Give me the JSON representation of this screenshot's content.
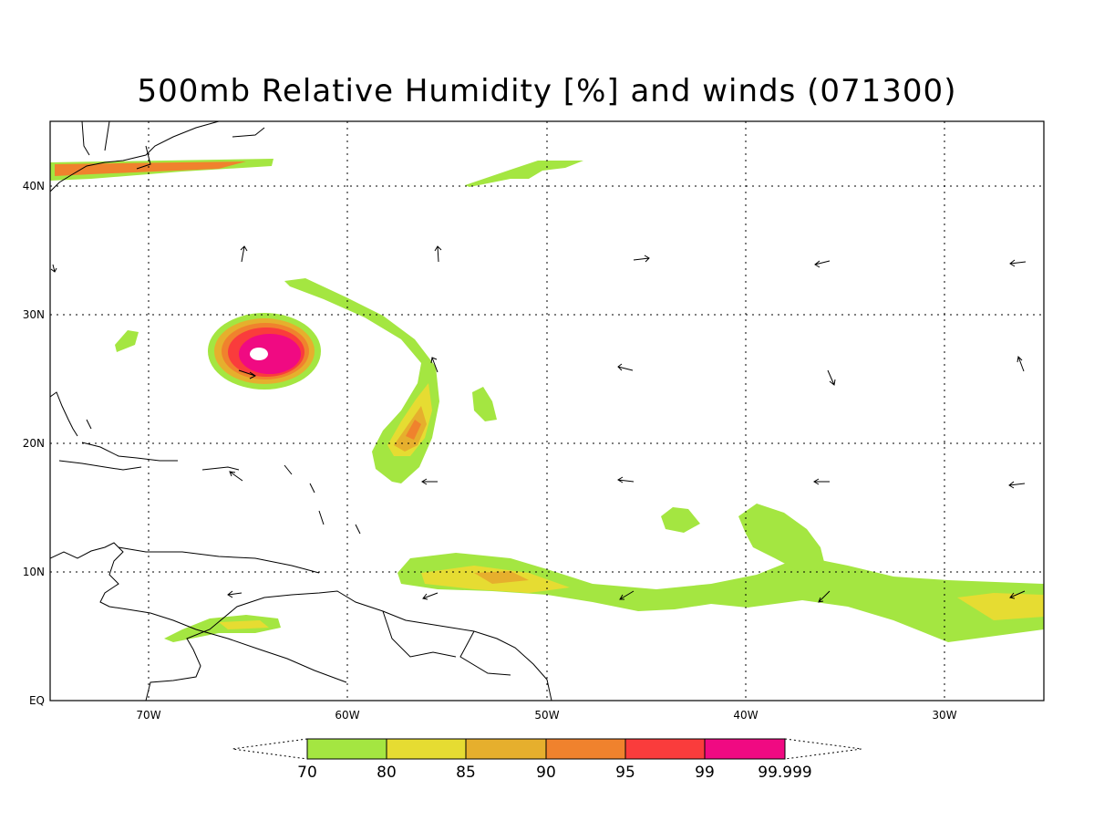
{
  "title": "500mb Relative Humidity [%] and winds (071300)",
  "axes": {
    "lon_labels": [
      "70W",
      "60W",
      "50W",
      "40W",
      "30W"
    ],
    "lat_labels": [
      "EQ",
      "10N",
      "20N",
      "30N",
      "40N"
    ]
  },
  "colorbar": {
    "labels": [
      "70",
      "80",
      "85",
      "90",
      "95",
      "99",
      "99.999"
    ],
    "colors": [
      "#a4e641",
      "#e6dc32",
      "#e6af2d",
      "#f0822d",
      "#fa3c3c",
      "#f00a82"
    ]
  },
  "colors": {
    "rh_70": "#a4e641",
    "rh_80": "#e6dc32",
    "rh_85": "#e6af2d",
    "rh_90": "#f0822d",
    "rh_95": "#fa3c3c",
    "rh_99": "#f00a82"
  }
}
